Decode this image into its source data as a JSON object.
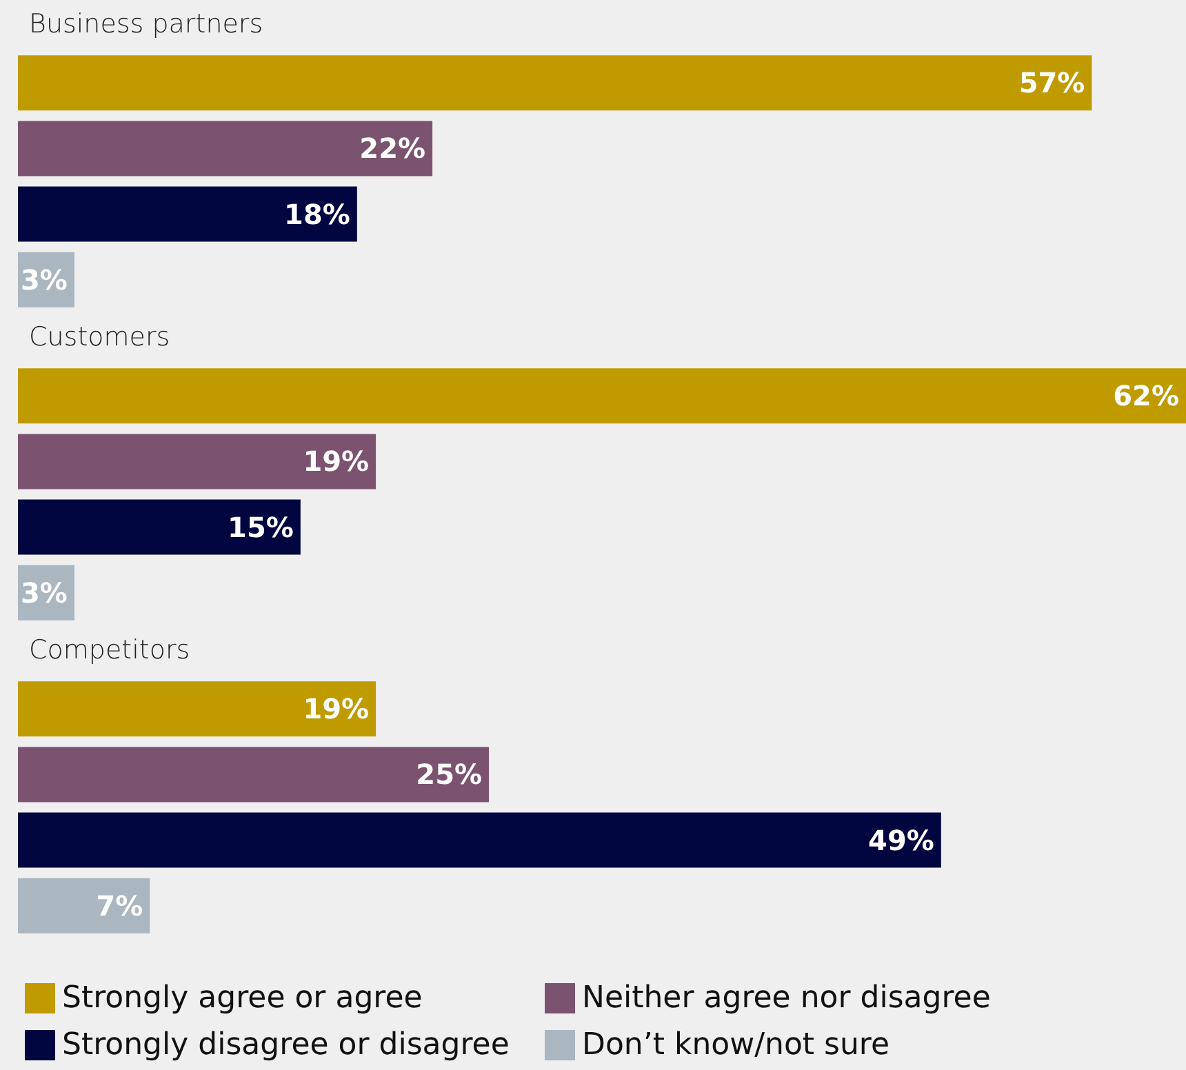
{
  "chart_data": {
    "type": "bar",
    "orientation": "horizontal",
    "categories": [
      "Business partners",
      "Customers",
      "Competitors"
    ],
    "series": [
      {
        "name": "Strongly agree or agree",
        "color": "#bf9b00",
        "values": [
          57,
          62,
          19
        ],
        "value_labels": [
          "57%",
          "62%",
          "19%"
        ]
      },
      {
        "name": "Neither agree nor disagree",
        "color": "#7b5370",
        "values": [
          22,
          19,
          25
        ],
        "value_labels": [
          "22%",
          "19%",
          "25%"
        ]
      },
      {
        "name": "Strongly disagree or disagree",
        "color": "#020640",
        "values": [
          18,
          15,
          49
        ],
        "value_labels": [
          "18%",
          "15%",
          "49%"
        ]
      },
      {
        "name": "Don’t know/not sure",
        "color": "#aab6c0",
        "values": [
          3,
          3,
          7
        ],
        "value_labels": [
          "3%",
          "3%",
          "7%"
        ]
      }
    ],
    "legend": "bottom"
  }
}
